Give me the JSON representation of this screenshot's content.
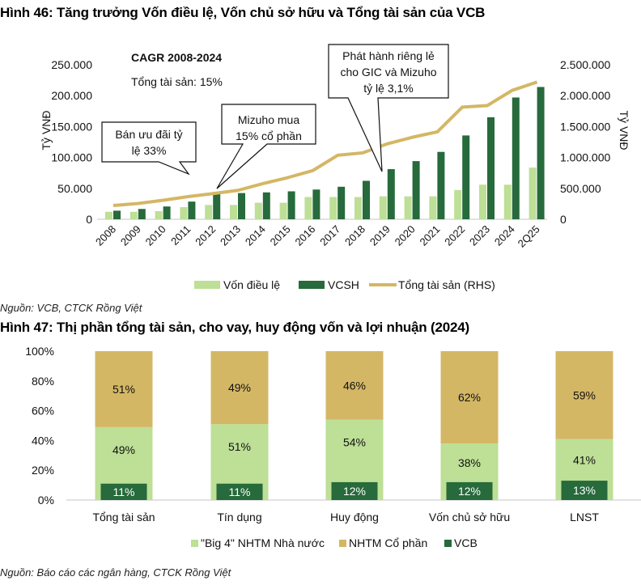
{
  "figure46": {
    "title": "Hình 46: Tăng trưởng Vốn điều lệ, Vốn chủ sở hữu và Tổng tài sản của VCB",
    "source": "Nguồn: VCB, CTCK Rồng Việt"
  },
  "figure47": {
    "title": "Hình 47: Thị phần tổng tài sản, cho vay, huy động vốn và lợi nhuận (2024)",
    "source": "Nguồn: Báo cáo các ngân hàng, CTCK Rồng Việt"
  },
  "chart_data": [
    {
      "type": "bar",
      "title": "Hình 46: Tăng trưởng Vốn điều lệ, Vốn chủ sở hữu và Tổng tài sản của VCB",
      "xlabel": "",
      "ylabel": "Tỷ VNĐ",
      "y2label": "Tỷ VNĐ",
      "ylim": [
        0,
        250000
      ],
      "y2lim": [
        0,
        2500000
      ],
      "yticks": [
        "0",
        "50.000",
        "100.000",
        "150.000",
        "200.000",
        "250.000"
      ],
      "y2ticks": [
        "0",
        "500.000",
        "1.000.000",
        "1.500.000",
        "2.000.000",
        "2.500.000"
      ],
      "categories": [
        "2008",
        "2009",
        "2010",
        "2011",
        "2012",
        "2013",
        "2014",
        "2015",
        "2016",
        "2017",
        "2018",
        "2019",
        "2020",
        "2021",
        "2022",
        "2023",
        "2024",
        "2Q25"
      ],
      "series": [
        {
          "name": "Vốn điều lệ",
          "type": "bar",
          "axis": "left",
          "color": "#bddf96",
          "values": [
            12100,
            12100,
            13200,
            19700,
            23200,
            23200,
            26700,
            26700,
            36000,
            36000,
            36000,
            37100,
            37100,
            37100,
            47300,
            55900,
            55900,
            83600
          ]
        },
        {
          "name": "VCSH",
          "type": "bar",
          "axis": "left",
          "color": "#276a3b",
          "values": [
            13900,
            16700,
            20700,
            28600,
            41500,
            42400,
            43500,
            45200,
            48100,
            52600,
            62200,
            81100,
            94100,
            109000,
            135600,
            165000,
            197000,
            214000
          ]
        },
        {
          "name": "Tổng tài sản (RHS)",
          "type": "line",
          "axis": "right",
          "color": "#d4b765",
          "values": [
            222000,
            256000,
            307000,
            367000,
            415000,
            468000,
            576000,
            674000,
            787000,
            1035000,
            1074000,
            1222000,
            1327000,
            1414000,
            1814000,
            1839000,
            2085000,
            2220000
          ]
        }
      ],
      "annotations": [
        {
          "text_lines": [
            "CAGR 2008-2024"
          ],
          "style": "bold"
        },
        {
          "text_lines": [
            "Tổng tài sản: 15%"
          ],
          "style": "normal"
        },
        {
          "text_lines": [
            "Bán ưu đãi tỷ",
            "lệ 33%"
          ],
          "callout_for": "2011"
        },
        {
          "text_lines": [
            "Mizuho mua",
            "15% cổ phần"
          ],
          "callout_for": "2012"
        },
        {
          "text_lines": [
            "Phát hành riêng lẻ",
            "cho GIC và Mizuho",
            "tỷ lệ 3,1%"
          ],
          "callout_for": "2019"
        }
      ],
      "legend": "bottom",
      "grid": false
    },
    {
      "type": "bar",
      "stacked": true,
      "title": "Hình 47: Thị phần tổng tài sản, cho vay, huy động vốn và lợi nhuận (2024)",
      "xlabel": "",
      "ylabel": "",
      "ylim": [
        0,
        100
      ],
      "yticks": [
        "0%",
        "20%",
        "40%",
        "60%",
        "80%",
        "100%"
      ],
      "categories": [
        "Tổng tài sản",
        "Tín dụng",
        "Huy động",
        "Vốn chủ sở hữu",
        "LNST"
      ],
      "series": [
        {
          "name": "\"Big 4\" NHTM Nhà nước",
          "color": "#bddf96",
          "values": [
            49,
            51,
            54,
            38,
            41
          ],
          "labels": [
            "49%",
            "51%",
            "54%",
            "38%",
            "41%"
          ]
        },
        {
          "name": "NHTM Cổ phần",
          "color": "#d4b765",
          "values": [
            51,
            49,
            46,
            62,
            59
          ],
          "labels": [
            "51%",
            "49%",
            "46%",
            "62%",
            "59%"
          ]
        },
        {
          "name": "VCB",
          "color": "#276a3b",
          "overlay": true,
          "values": [
            11,
            11,
            12,
            12,
            13
          ],
          "labels": [
            "11%",
            "11%",
            "12%",
            "12%",
            "13%"
          ]
        }
      ],
      "legend": "bottom",
      "grid": false
    }
  ]
}
